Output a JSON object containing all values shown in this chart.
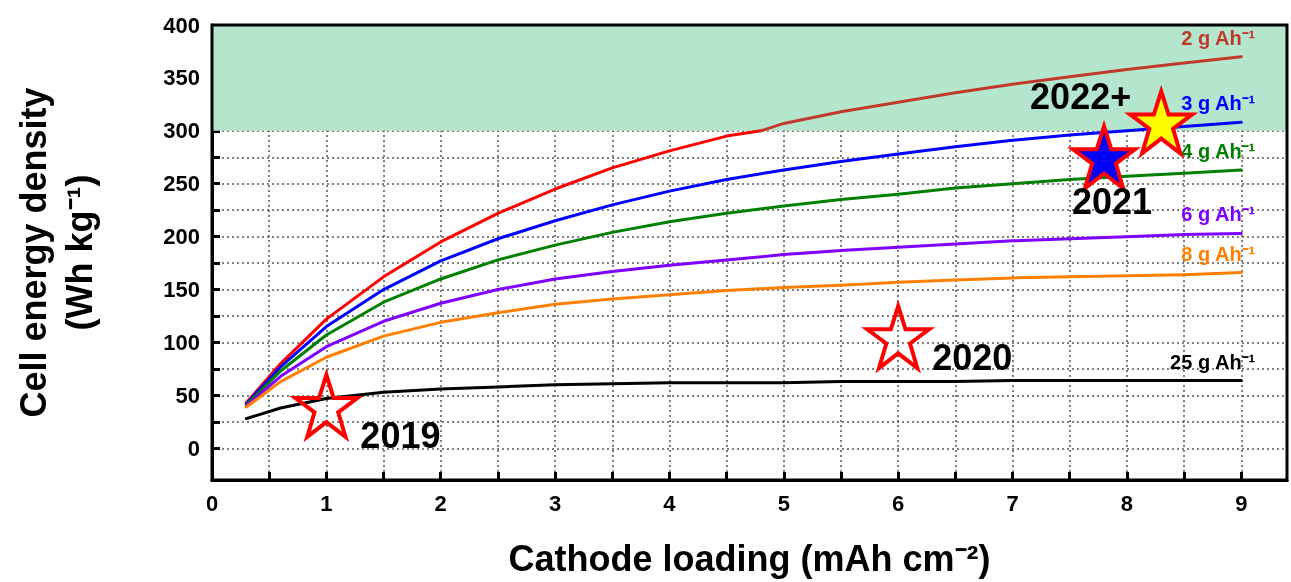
{
  "chart_data": {
    "type": "line",
    "xlabel": "Cathode loading (mAh cm⁻²)",
    "ylabel": "Cell energy density (Wh kg⁻¹)",
    "xlim": [
      0,
      9.4
    ],
    "ylim": [
      -30,
      400
    ],
    "xticks": [
      0,
      {
        "value": 0.5,
        "label": null
      },
      1,
      {
        "value": 1.5,
        "label": null
      },
      2,
      {
        "value": 2.5,
        "label": null
      },
      3,
      {
        "value": 3.5,
        "label": null
      },
      4,
      {
        "value": 4.5,
        "label": null
      },
      5,
      {
        "value": 5.5,
        "label": null
      },
      6,
      {
        "value": 6.5,
        "label": null
      },
      7,
      {
        "value": 7.5,
        "label": null
      },
      8,
      {
        "value": 8.5,
        "label": null
      },
      9
    ],
    "yticks": [
      0,
      {
        "value": 25,
        "label": null
      },
      50,
      {
        "value": 75,
        "label": null
      },
      100,
      {
        "value": 125,
        "label": null
      },
      150,
      {
        "value": 175,
        "label": null
      },
      200,
      {
        "value": 225,
        "label": null
      },
      250,
      {
        "value": 275,
        "label": null
      },
      300,
      {
        "value": 325,
        "label": null
      },
      350,
      {
        "value": 375,
        "label": null
      },
      400
    ],
    "grid": true,
    "legend": false,
    "marker": "none",
    "line_style": "solid",
    "bands": [
      {
        "axis": "y",
        "from": 300,
        "to": 400,
        "color": "#b3e6cc"
      }
    ],
    "annotations": [
      {
        "text": "2019",
        "x": 1,
        "y": 40
      },
      {
        "text": "2020",
        "x": 6,
        "y": 105
      },
      {
        "text": "2021",
        "x": 7.8,
        "y": 275
      },
      {
        "text": "2022+",
        "x": 8.3,
        "y": 308
      }
    ],
    "series": [
      {
        "color": "#ff0000",
        "x": [
          0.3,
          0.6,
          1,
          1.5,
          2,
          2.5,
          3,
          3.5,
          4,
          4.5,
          4.8
        ],
        "values": [
          43,
          80,
          122,
          162,
          195,
          222,
          245,
          265,
          281,
          295,
          300
        ]
      },
      {
        "name": "2 g Ah⁻¹",
        "color": "#c0392b",
        "x": [
          4.8,
          5,
          5.5,
          6,
          6.5,
          7,
          7.5,
          8,
          8.5,
          9
        ],
        "values": [
          300,
          307,
          318,
          327,
          336,
          344,
          351,
          358,
          364,
          370
        ]
      },
      {
        "name": "3 g Ah⁻¹",
        "color": "#0000ff",
        "x": [
          0.3,
          0.6,
          1,
          1.5,
          2,
          2.5,
          3,
          3.5,
          4,
          4.5,
          5,
          5.5,
          6,
          6.5,
          7,
          7.5,
          8,
          8.5,
          9
        ],
        "values": [
          42,
          77,
          115,
          150,
          177,
          198,
          215,
          230,
          243,
          254,
          263,
          271,
          278,
          285,
          291,
          296,
          300,
          304,
          308
        ]
      },
      {
        "name": "4 g Ah⁻¹",
        "color": "#008000",
        "x": [
          0.3,
          0.6,
          1,
          1.5,
          2,
          2.5,
          3,
          3.5,
          4,
          4.5,
          5,
          5.5,
          6,
          6.5,
          7,
          7.5,
          8,
          8.5,
          9
        ],
        "values": [
          41,
          73,
          107,
          138,
          160,
          178,
          192,
          204,
          214,
          222,
          229,
          235,
          240,
          246,
          250,
          254,
          257,
          260,
          263
        ]
      },
      {
        "name": "6 g Ah⁻¹",
        "color": "#8000ff",
        "x": [
          0.3,
          0.6,
          1,
          1.5,
          2,
          2.5,
          3,
          3.5,
          4,
          4.5,
          5,
          5.5,
          6,
          6.5,
          7,
          7.5,
          8,
          8.5,
          9
        ],
        "values": [
          40,
          68,
          96,
          120,
          137,
          150,
          160,
          167,
          173,
          178,
          183,
          187,
          190,
          193,
          196,
          198,
          200,
          202,
          203
        ]
      },
      {
        "name": "8 g Ah⁻¹",
        "color": "#ff8000",
        "x": [
          0.3,
          0.6,
          1,
          1.5,
          2,
          2.5,
          3,
          3.5,
          4,
          4.5,
          5,
          5.5,
          6,
          6.5,
          7,
          7.5,
          8,
          8.5,
          9
        ],
        "values": [
          39,
          63,
          86,
          106,
          119,
          128,
          136,
          141,
          145,
          149,
          152,
          154,
          157,
          159,
          161,
          162,
          163,
          164,
          166
        ]
      },
      {
        "name": "25 g Ah⁻¹",
        "color": "#000000",
        "x": [
          0.3,
          0.6,
          1,
          1.5,
          2,
          2.5,
          3,
          3.5,
          4,
          4.5,
          5,
          5.5,
          6,
          6.5,
          7,
          7.5,
          8,
          8.5,
          9
        ],
        "values": [
          28,
          38,
          47,
          53,
          56,
          58,
          60,
          61,
          62,
          62,
          62,
          63,
          63,
          63,
          64,
          64,
          64,
          64,
          64
        ]
      },
      {
        "type": "scatter",
        "marker": "star",
        "color": "#ff0000",
        "x": [
          1
        ],
        "values": [
          40
        ]
      },
      {
        "type": "scatter",
        "marker": "star",
        "color": "#ff0000",
        "x": [
          6
        ],
        "values": [
          105
        ]
      },
      {
        "type": "scatter",
        "marker": "star",
        "color": "#0000ff",
        "x": [
          7.8
        ],
        "values": [
          275
        ]
      },
      {
        "type": "scatter",
        "marker": "star",
        "color": "#ffff00",
        "x": [
          8.3
        ],
        "values": [
          308
        ]
      }
    ]
  }
}
